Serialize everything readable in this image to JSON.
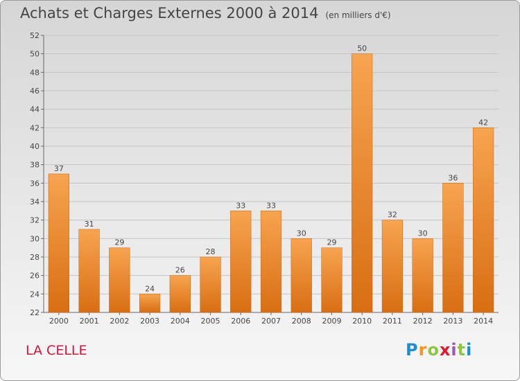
{
  "header": {
    "title": "Achats et Charges Externes 2000 à 2014",
    "unit": "(en milliers d'€)"
  },
  "footer": {
    "town": "LA CELLE",
    "logo": "Proxiti"
  },
  "chart_data": {
    "type": "bar",
    "title": "Achats et Charges Externes 2000 à 2014",
    "subtitle": "(en milliers d'€)",
    "categories": [
      "2000",
      "2001",
      "2002",
      "2003",
      "2004",
      "2005",
      "2006",
      "2007",
      "2008",
      "2009",
      "2010",
      "2011",
      "2012",
      "2013",
      "2014"
    ],
    "values": [
      37,
      31,
      29,
      24,
      26,
      28,
      33,
      33,
      30,
      29,
      50,
      32,
      30,
      36,
      42
    ],
    "ylim": [
      22,
      52
    ],
    "yticks": [
      22,
      24,
      26,
      28,
      30,
      32,
      34,
      36,
      38,
      40,
      42,
      44,
      46,
      48,
      50,
      52
    ],
    "grid": true,
    "bar_color": "#f08a30",
    "xlabel": "",
    "ylabel": ""
  }
}
